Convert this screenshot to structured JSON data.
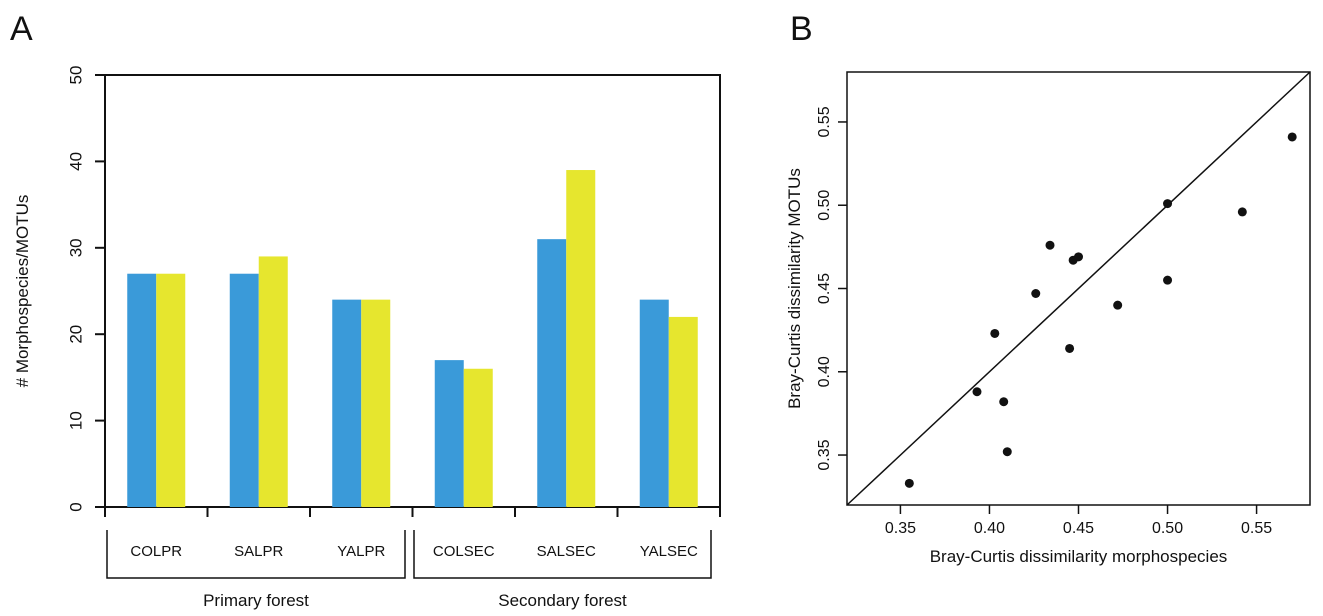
{
  "panel_labels": {
    "a": "A",
    "b": "B"
  },
  "colors": {
    "series1": "#3a9ad9",
    "series2": "#e6e62e",
    "axis": "#111111",
    "points": "#111111"
  },
  "chart_data": [
    {
      "panel": "A",
      "type": "bar",
      "ylabel": "# Morphospecies/MOTUs",
      "ylim": [
        0,
        50
      ],
      "yticks": [
        0,
        10,
        20,
        30,
        40,
        50
      ],
      "categories": [
        "COLPR",
        "SALPR",
        "YALPR",
        "COLSEC",
        "SALSEC",
        "YALSEC"
      ],
      "series": [
        {
          "values": [
            27,
            27,
            24,
            17,
            31,
            24
          ]
        },
        {
          "values": [
            27,
            29,
            24,
            16,
            39,
            22
          ]
        }
      ],
      "groups": [
        {
          "label": "Primary forest",
          "categories": [
            "COLPR",
            "SALPR",
            "YALPR"
          ]
        },
        {
          "label": "Secondary forest",
          "categories": [
            "COLSEC",
            "SALSEC",
            "YALSEC"
          ]
        }
      ],
      "grid": false,
      "legend": "none"
    },
    {
      "panel": "B",
      "type": "scatter",
      "xlabel": "Bray-Curtis dissimilarity morphospecies",
      "ylabel": "Bray-Curtis dissimilarity MOTUs",
      "xlim": [
        0.32,
        0.58
      ],
      "ylim": [
        0.32,
        0.58
      ],
      "xticks": [
        0.35,
        0.4,
        0.45,
        0.5,
        0.55
      ],
      "yticks": [
        0.35,
        0.4,
        0.45,
        0.5,
        0.55
      ],
      "tick_labels": [
        "0.35",
        "0.40",
        "0.45",
        "0.50",
        "0.55"
      ],
      "reference_line": "y = x",
      "points": [
        {
          "x": 0.355,
          "y": 0.333
        },
        {
          "x": 0.393,
          "y": 0.388
        },
        {
          "x": 0.403,
          "y": 0.423
        },
        {
          "x": 0.408,
          "y": 0.382
        },
        {
          "x": 0.41,
          "y": 0.352
        },
        {
          "x": 0.426,
          "y": 0.447
        },
        {
          "x": 0.434,
          "y": 0.476
        },
        {
          "x": 0.445,
          "y": 0.414
        },
        {
          "x": 0.447,
          "y": 0.467
        },
        {
          "x": 0.45,
          "y": 0.469
        },
        {
          "x": 0.472,
          "y": 0.44
        },
        {
          "x": 0.5,
          "y": 0.501
        },
        {
          "x": 0.5,
          "y": 0.455
        },
        {
          "x": 0.542,
          "y": 0.496
        },
        {
          "x": 0.57,
          "y": 0.541
        }
      ],
      "grid": false,
      "legend": "none"
    }
  ]
}
